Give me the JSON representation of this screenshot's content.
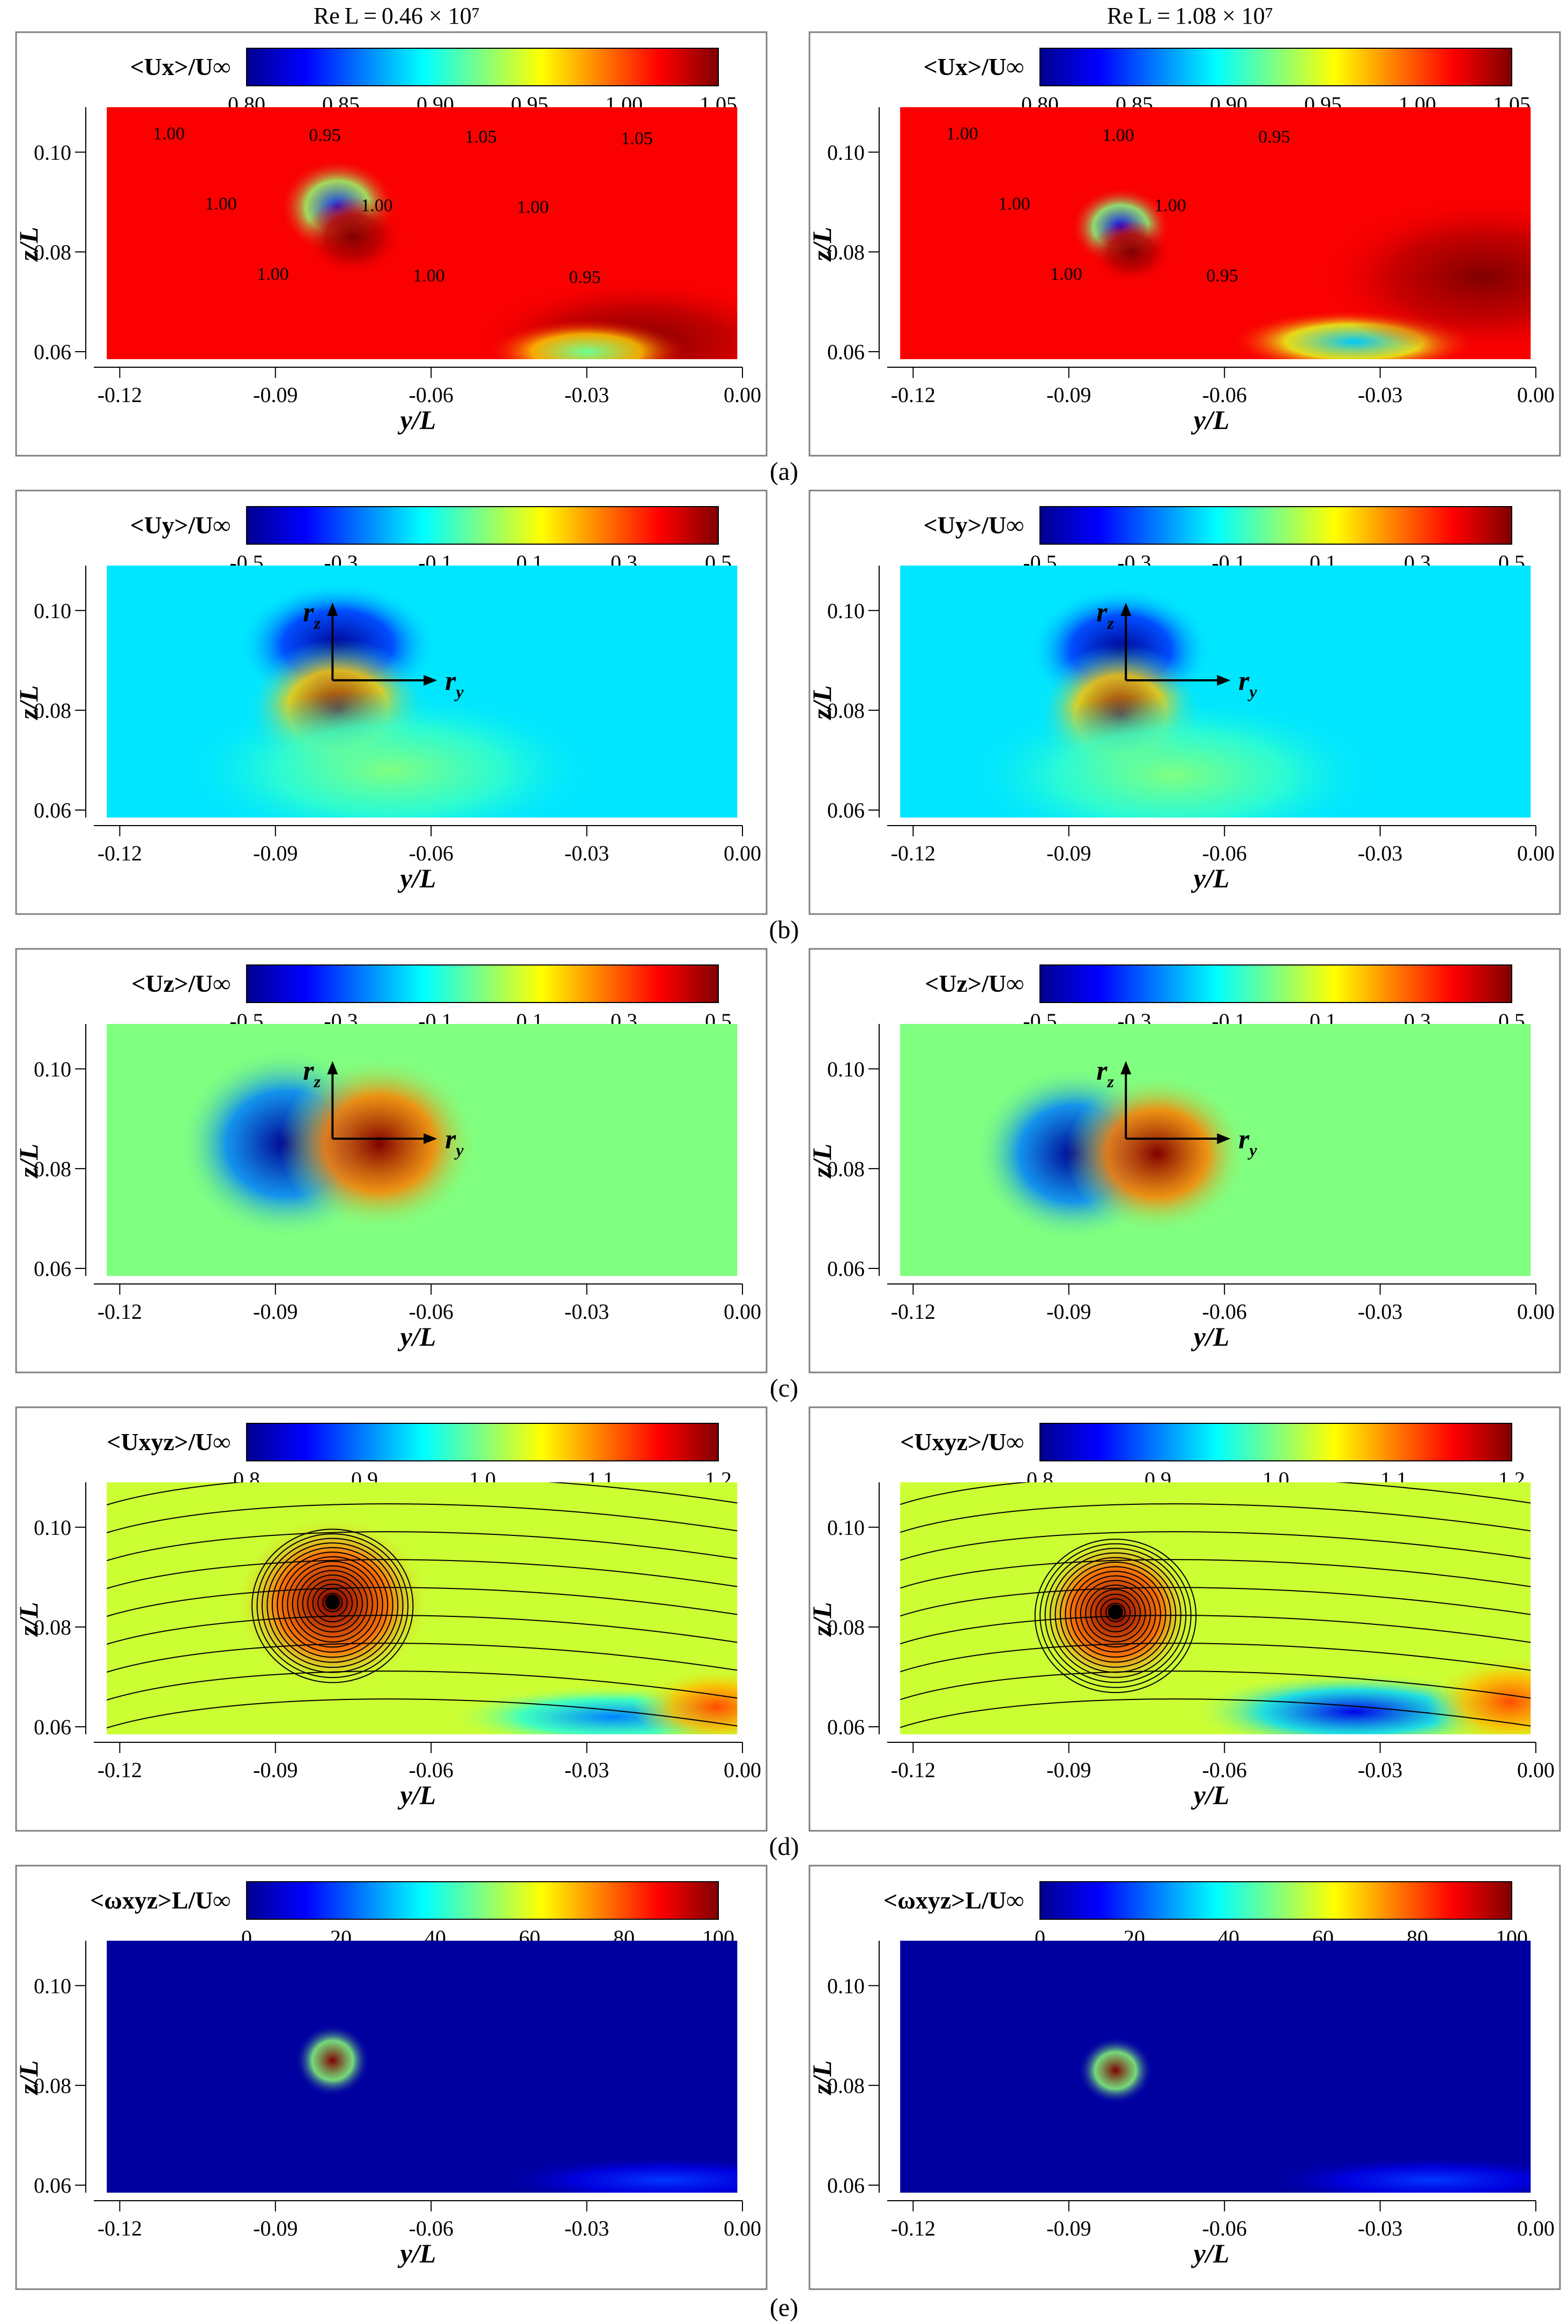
{
  "column_titles": [
    "Re L = 0.46 × 10⁷",
    "Re L = 1.08 × 10⁷"
  ],
  "panel_labels": [
    "(a)",
    "(b)",
    "(c)",
    "(d)",
    "(e)"
  ],
  "colors": {
    "colormap": [
      "#00008f",
      "#0000ff",
      "#0080ff",
      "#00ffff",
      "#80ff80",
      "#ffff00",
      "#ff8000",
      "#ff0000",
      "#800000"
    ],
    "frame": "#808080"
  },
  "chart_data": [
    {
      "type": "heatmap",
      "panel": "(a)",
      "column": "Re_L = 0.46e7",
      "colorbar_label": "<Ux>/U∞",
      "colorbar_ticks": [
        "0.80",
        "0.85",
        "0.90",
        "0.95",
        "1.00",
        "1.05"
      ],
      "colorbar_range": [
        0.8,
        1.05
      ],
      "xlabel": "y/L",
      "ylabel": "z/L",
      "xticks": [
        "-0.12",
        "-0.09",
        "-0.06",
        "-0.03",
        "0.00"
      ],
      "yticks": [
        "0.06",
        "0.08",
        "0.10"
      ],
      "xlim": [
        -0.125,
        0.0
      ],
      "ylim": [
        0.0585,
        0.109
      ],
      "background": 1.02,
      "features": [
        {
          "y": -0.078,
          "z": 0.089,
          "value": 0.84,
          "rx": 0.007,
          "rz": 0.006
        },
        {
          "y": -0.075,
          "z": 0.083,
          "value": 1.05,
          "rx": 0.006,
          "rz": 0.005
        },
        {
          "y": -0.02,
          "z": 0.062,
          "value": 1.05,
          "rx": 0.02,
          "rz": 0.008
        },
        {
          "y": -0.03,
          "z": 0.06,
          "value": 0.92,
          "rx": 0.012,
          "rz": 0.004
        }
      ],
      "contour_labels": [
        "1.00",
        "1.00",
        "1.00",
        "0.95",
        "1.00",
        "1.00",
        "1.05",
        "1.00",
        "0.95",
        "1.05"
      ]
    },
    {
      "type": "heatmap",
      "panel": "(a)",
      "column": "Re_L = 1.08e7",
      "colorbar_label": "<Ux>/U∞",
      "colorbar_ticks": [
        "0.80",
        "0.85",
        "0.90",
        "0.95",
        "1.00",
        "1.05"
      ],
      "colorbar_range": [
        0.8,
        1.05
      ],
      "xlabel": "y/L",
      "ylabel": "z/L",
      "xticks": [
        "-0.12",
        "-0.09",
        "-0.06",
        "-0.03",
        "0.00"
      ],
      "yticks": [
        "0.06",
        "0.08",
        "0.10"
      ],
      "xlim": [
        -0.125,
        0.0
      ],
      "ylim": [
        0.0585,
        0.109
      ],
      "background": 1.02,
      "features": [
        {
          "y": -0.08,
          "z": 0.085,
          "value": 0.83,
          "rx": 0.006,
          "rz": 0.005
        },
        {
          "y": -0.078,
          "z": 0.08,
          "value": 1.05,
          "rx": 0.005,
          "rz": 0.004
        },
        {
          "y": -0.035,
          "z": 0.062,
          "value": 0.88,
          "rx": 0.015,
          "rz": 0.004
        },
        {
          "y": -0.01,
          "z": 0.075,
          "value": 1.05,
          "rx": 0.02,
          "rz": 0.01
        }
      ],
      "contour_labels": [
        "1.00",
        "1.00",
        "1.00",
        "1.00",
        "1.00",
        "0.95",
        "0.95"
      ]
    },
    {
      "type": "heatmap",
      "panel": "(b)",
      "column": "Re_L = 0.46e7",
      "colorbar_label": "<Uy>/U∞",
      "colorbar_ticks": [
        "-0.5",
        "-0.3",
        "-0.1",
        "0.1",
        "0.3",
        "0.5"
      ],
      "colorbar_range": [
        -0.5,
        0.5
      ],
      "xlabel": "y/L",
      "ylabel": "z/L",
      "xticks": [
        "-0.12",
        "-0.09",
        "-0.06",
        "-0.03",
        "0.00"
      ],
      "yticks": [
        "0.06",
        "0.08",
        "0.10"
      ],
      "xlim": [
        -0.125,
        0.0
      ],
      "ylim": [
        0.0585,
        0.109
      ],
      "background": -0.15,
      "features": [
        {
          "y": -0.078,
          "z": 0.093,
          "value": -0.5,
          "rx": 0.012,
          "rz": 0.008
        },
        {
          "y": -0.078,
          "z": 0.08,
          "value": 0.5,
          "rx": 0.011,
          "rz": 0.009
        },
        {
          "y": -0.068,
          "z": 0.068,
          "value": 0.0,
          "rx": 0.025,
          "rz": 0.01
        }
      ],
      "axis_labels": [
        "r z",
        "r y"
      ]
    },
    {
      "type": "heatmap",
      "panel": "(b)",
      "column": "Re_L = 1.08e7",
      "colorbar_label": "<Uy>/U∞",
      "colorbar_ticks": [
        "-0.5",
        "-0.3",
        "-0.1",
        "0.1",
        "0.3",
        "0.5"
      ],
      "colorbar_range": [
        -0.5,
        0.5
      ],
      "xlabel": "y/L",
      "ylabel": "z/L",
      "xticks": [
        "-0.12",
        "-0.09",
        "-0.06",
        "-0.03",
        "0.00"
      ],
      "yticks": [
        "0.06",
        "0.08",
        "0.10"
      ],
      "xlim": [
        -0.125,
        0.0
      ],
      "ylim": [
        0.0585,
        0.109
      ],
      "background": -0.15,
      "features": [
        {
          "y": -0.08,
          "z": 0.092,
          "value": -0.5,
          "rx": 0.011,
          "rz": 0.008
        },
        {
          "y": -0.08,
          "z": 0.079,
          "value": 0.5,
          "rx": 0.01,
          "rz": 0.009
        },
        {
          "y": -0.07,
          "z": 0.067,
          "value": 0.0,
          "rx": 0.025,
          "rz": 0.01
        }
      ],
      "axis_labels": [
        "r z",
        "r y"
      ]
    },
    {
      "type": "heatmap",
      "panel": "(c)",
      "column": "Re_L = 0.46e7",
      "colorbar_label": "<Uz>/U∞",
      "colorbar_ticks": [
        "-0.5",
        "-0.3",
        "-0.1",
        "0.1",
        "0.3",
        "0.5"
      ],
      "colorbar_range": [
        -0.5,
        0.5
      ],
      "xlabel": "y/L",
      "ylabel": "z/L",
      "xticks": [
        "-0.12",
        "-0.09",
        "-0.06",
        "-0.03",
        "0.00"
      ],
      "yticks": [
        "0.06",
        "0.08",
        "0.10"
      ],
      "xlim": [
        -0.125,
        0.0
      ],
      "ylim": [
        0.0585,
        0.109
      ],
      "background": 0.0,
      "features": [
        {
          "y": -0.088,
          "z": 0.085,
          "value": -0.5,
          "rx": 0.013,
          "rz": 0.012
        },
        {
          "y": -0.07,
          "z": 0.085,
          "value": 0.5,
          "rx": 0.012,
          "rz": 0.011
        }
      ],
      "axis_labels": [
        "r z",
        "r y"
      ]
    },
    {
      "type": "heatmap",
      "panel": "(c)",
      "column": "Re_L = 1.08e7",
      "colorbar_label": "<Uz>/U∞",
      "colorbar_ticks": [
        "-0.5",
        "-0.3",
        "-0.1",
        "0.1",
        "0.3",
        "0.5"
      ],
      "colorbar_range": [
        -0.5,
        0.5
      ],
      "xlabel": "y/L",
      "ylabel": "z/L",
      "xticks": [
        "-0.12",
        "-0.09",
        "-0.06",
        "-0.03",
        "0.00"
      ],
      "yticks": [
        "0.06",
        "0.08",
        "0.10"
      ],
      "xlim": [
        -0.125,
        0.0
      ],
      "ylim": [
        0.0585,
        0.109
      ],
      "background": 0.0,
      "features": [
        {
          "y": -0.089,
          "z": 0.083,
          "value": -0.5,
          "rx": 0.012,
          "rz": 0.011
        },
        {
          "y": -0.073,
          "z": 0.083,
          "value": 0.5,
          "rx": 0.011,
          "rz": 0.01
        }
      ],
      "axis_labels": [
        "r z",
        "r y"
      ]
    },
    {
      "type": "heatmap",
      "panel": "(d)",
      "column": "Re_L = 0.46e7",
      "colorbar_label": "<Uxyz>/U∞",
      "colorbar_ticks": [
        "0.8",
        "0.9",
        "1.0",
        "1.1",
        "1.2"
      ],
      "colorbar_range": [
        0.8,
        1.2
      ],
      "xlabel": "y/L",
      "ylabel": "z/L",
      "xticks": [
        "-0.12",
        "-0.09",
        "-0.06",
        "-0.03",
        "0.00"
      ],
      "yticks": [
        "0.06",
        "0.08",
        "0.10"
      ],
      "xlim": [
        -0.125,
        0.0
      ],
      "ylim": [
        0.0585,
        0.109
      ],
      "background": 1.03,
      "features": [
        {
          "y": -0.079,
          "z": 0.085,
          "value": 1.2,
          "rx": 0.012,
          "rz": 0.011
        },
        {
          "y": -0.025,
          "z": 0.062,
          "value": 0.9,
          "rx": 0.02,
          "rz": 0.004
        },
        {
          "y": -0.005,
          "z": 0.064,
          "value": 1.12,
          "rx": 0.01,
          "rz": 0.005
        }
      ],
      "streamlines": true,
      "vortex_center": [
        -0.079,
        0.085
      ]
    },
    {
      "type": "heatmap",
      "panel": "(d)",
      "column": "Re_L = 1.08e7",
      "colorbar_label": "<Uxyz>/U∞",
      "colorbar_ticks": [
        "0.8",
        "0.9",
        "1.0",
        "1.1",
        "1.2"
      ],
      "colorbar_range": [
        0.8,
        1.2
      ],
      "xlabel": "y/L",
      "ylabel": "z/L",
      "xticks": [
        "-0.12",
        "-0.09",
        "-0.06",
        "-0.03",
        "0.00"
      ],
      "yticks": [
        "0.06",
        "0.08",
        "0.10"
      ],
      "xlim": [
        -0.125,
        0.0
      ],
      "ylim": [
        0.0585,
        0.109
      ],
      "background": 1.03,
      "features": [
        {
          "y": -0.081,
          "z": 0.083,
          "value": 1.2,
          "rx": 0.01,
          "rz": 0.01
        },
        {
          "y": -0.035,
          "z": 0.063,
          "value": 0.84,
          "rx": 0.02,
          "rz": 0.005
        },
        {
          "y": -0.005,
          "z": 0.065,
          "value": 1.12,
          "rx": 0.01,
          "rz": 0.006
        }
      ],
      "streamlines": true,
      "vortex_center": [
        -0.081,
        0.083
      ]
    },
    {
      "type": "heatmap",
      "panel": "(e)",
      "column": "Re_L = 0.46e7",
      "colorbar_label": "<ωxyz>L/U∞",
      "colorbar_ticks": [
        "0",
        "20",
        "40",
        "60",
        "80",
        "100"
      ],
      "colorbar_range": [
        0,
        100
      ],
      "xlabel": "y/L",
      "ylabel": "z/L",
      "xticks": [
        "-0.12",
        "-0.09",
        "-0.06",
        "-0.03",
        "0.00"
      ],
      "yticks": [
        "0.06",
        "0.08",
        "0.10"
      ],
      "xlim": [
        -0.125,
        0.0
      ],
      "ylim": [
        0.0585,
        0.109
      ],
      "background": 2,
      "features": [
        {
          "y": -0.079,
          "z": 0.085,
          "value": 100,
          "rx": 0.0045,
          "rz": 0.0045
        },
        {
          "y": -0.015,
          "z": 0.061,
          "value": 18,
          "rx": 0.02,
          "rz": 0.003
        }
      ]
    },
    {
      "type": "heatmap",
      "panel": "(e)",
      "column": "Re_L = 1.08e7",
      "colorbar_label": "<ωxyz>L/U∞",
      "colorbar_ticks": [
        "0",
        "20",
        "40",
        "60",
        "80",
        "100"
      ],
      "colorbar_range": [
        0,
        100
      ],
      "xlabel": "y/L",
      "ylabel": "z/L",
      "xticks": [
        "-0.12",
        "-0.09",
        "-0.06",
        "-0.03",
        "0.00"
      ],
      "yticks": [
        "0.06",
        "0.08",
        "0.10"
      ],
      "xlim": [
        -0.125,
        0.0
      ],
      "ylim": [
        0.0585,
        0.109
      ],
      "background": 2,
      "features": [
        {
          "y": -0.081,
          "z": 0.083,
          "value": 100,
          "rx": 0.0045,
          "rz": 0.0042
        },
        {
          "y": -0.02,
          "z": 0.061,
          "value": 18,
          "rx": 0.02,
          "rz": 0.003
        }
      ]
    }
  ]
}
